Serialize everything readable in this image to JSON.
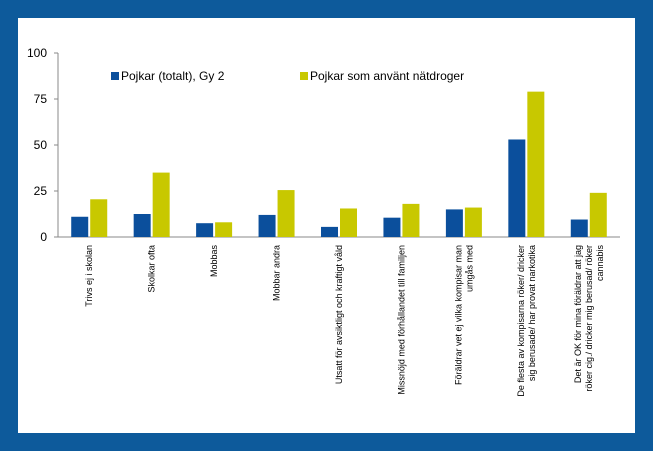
{
  "chart_data": {
    "type": "bar",
    "categories": [
      "Trivs ej i skolan",
      "Skolkar ofta",
      "Mobbas",
      "Mobbar andra",
      "Utsatt för avsiktligt och kraftigt våld",
      "Missnöjd med förhållandet till familjen",
      "Föräldrar vet ej vilka kompisar man umgås med",
      "De flesta av kompisarna röker/ dricker sig berusade/ har provat narkotika",
      "Det är OK för mina föräldrar att jag röker cig./ dricker mig berusad/ röker cannabis"
    ],
    "series": [
      {
        "name": "Pojkar (totalt), Gy 2",
        "color": "#0b4f9c",
        "values": [
          11,
          12.5,
          7.5,
          12,
          5.5,
          10.5,
          15,
          53,
          9.5
        ]
      },
      {
        "name": "Pojkar som använt nätdroger",
        "color": "#c8c800",
        "values": [
          20.5,
          35,
          8,
          25.5,
          15.5,
          18,
          16,
          79,
          24
        ]
      }
    ],
    "ylim": [
      0,
      100
    ],
    "yticks": [
      0,
      25,
      50,
      75,
      100
    ],
    "grid": false
  }
}
